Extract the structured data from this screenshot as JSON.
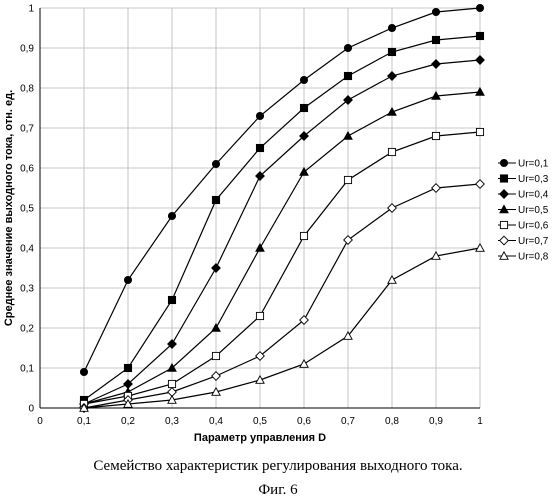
{
  "chart_data": {
    "type": "line",
    "xlabel": "Параметр управления D",
    "ylabel": "Среднее значение выходного тока, отн. ед.",
    "xlim": [
      0,
      1
    ],
    "ylim": [
      0,
      1
    ],
    "x_ticks": [
      "0",
      "0,1",
      "0,2",
      "0,3",
      "0,4",
      "0,5",
      "0,6",
      "0,7",
      "0,8",
      "0,9",
      "1"
    ],
    "y_ticks": [
      "0",
      "0,1",
      "0,2",
      "0,3",
      "0,4",
      "0,5",
      "0,6",
      "0,7",
      "0,8",
      "0,9",
      "1"
    ],
    "grid": true,
    "legend_position": "right",
    "x": [
      0.1,
      0.2,
      0.3,
      0.4,
      0.5,
      0.6,
      0.7,
      0.8,
      0.9,
      1.0
    ],
    "series": [
      {
        "name": "Ur=0,1",
        "marker": "filled-circle",
        "values": [
          0.09,
          0.32,
          0.48,
          0.61,
          0.73,
          0.82,
          0.9,
          0.95,
          0.99,
          1.0
        ]
      },
      {
        "name": "Ur=0,3",
        "marker": "filled-square",
        "values": [
          0.02,
          0.1,
          0.27,
          0.52,
          0.65,
          0.75,
          0.83,
          0.89,
          0.92,
          0.93
        ]
      },
      {
        "name": "Ur=0,4",
        "marker": "filled-diamond",
        "values": [
          0.01,
          0.06,
          0.16,
          0.35,
          0.58,
          0.68,
          0.77,
          0.83,
          0.86,
          0.87
        ]
      },
      {
        "name": "Ur=0,5",
        "marker": "filled-triangle",
        "values": [
          0.01,
          0.04,
          0.1,
          0.2,
          0.4,
          0.59,
          0.68,
          0.74,
          0.78,
          0.79
        ]
      },
      {
        "name": "Ur=0,6",
        "marker": "open-square",
        "values": [
          0.01,
          0.03,
          0.06,
          0.13,
          0.23,
          0.43,
          0.57,
          0.64,
          0.68,
          0.69
        ]
      },
      {
        "name": "Ur=0,7",
        "marker": "open-diamond",
        "values": [
          0.0,
          0.02,
          0.04,
          0.08,
          0.13,
          0.22,
          0.42,
          0.5,
          0.55,
          0.56
        ]
      },
      {
        "name": "Ur=0,8",
        "marker": "open-triangle",
        "values": [
          0.0,
          0.01,
          0.02,
          0.04,
          0.07,
          0.11,
          0.18,
          0.32,
          0.38,
          0.4
        ]
      }
    ]
  },
  "caption": {
    "main": "Семейство характеристик регулирования выходного тока.",
    "figure": "Фиг. 6"
  }
}
